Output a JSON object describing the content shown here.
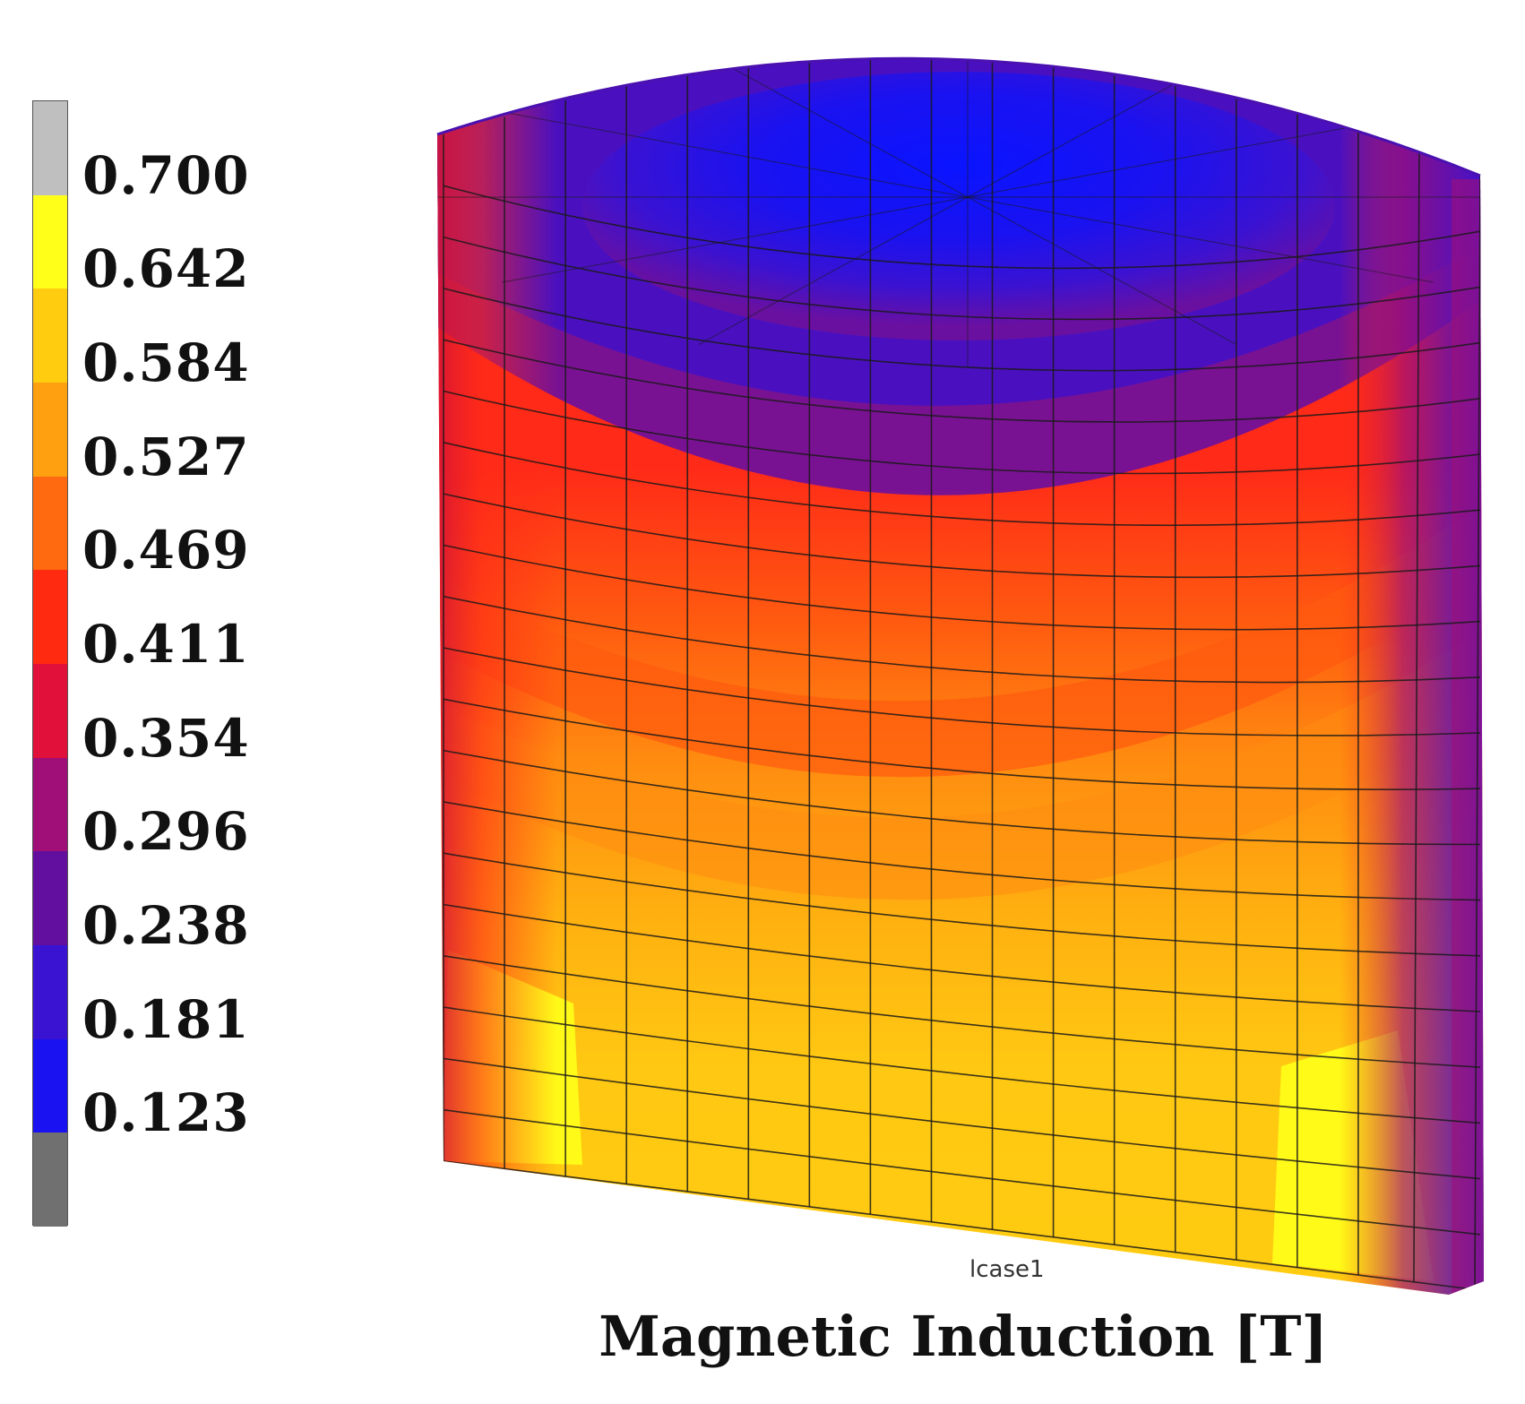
{
  "figure": {
    "title": "Magnetic Induction [T]",
    "case_label": "lcase1"
  },
  "legend": {
    "labels": [
      "0.700",
      "0.642",
      "0.584",
      "0.527",
      "0.469",
      "0.411",
      "0.354",
      "0.296",
      "0.238",
      "0.181",
      "0.123"
    ],
    "colors": [
      "#bfbfbf",
      "#ffff1a",
      "#ffcc10",
      "#ffa010",
      "#ff6a10",
      "#ff2a10",
      "#e0103a",
      "#a00f78",
      "#620fa0",
      "#3a12d2",
      "#1a12f0",
      "#707070"
    ]
  }
}
